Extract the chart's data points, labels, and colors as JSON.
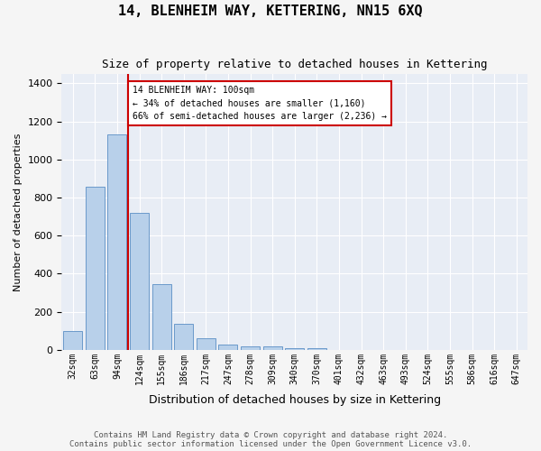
{
  "title": "14, BLENHEIM WAY, KETTERING, NN15 6XQ",
  "subtitle": "Size of property relative to detached houses in Kettering",
  "xlabel": "Distribution of detached houses by size in Kettering",
  "ylabel": "Number of detached properties",
  "categories": [
    "32sqm",
    "63sqm",
    "94sqm",
    "124sqm",
    "155sqm",
    "186sqm",
    "217sqm",
    "247sqm",
    "278sqm",
    "309sqm",
    "340sqm",
    "370sqm",
    "401sqm",
    "432sqm",
    "463sqm",
    "493sqm",
    "524sqm",
    "555sqm",
    "586sqm",
    "616sqm",
    "647sqm"
  ],
  "bar_values": [
    100,
    855,
    1130,
    720,
    345,
    135,
    60,
    30,
    20,
    18,
    10,
    10,
    0,
    0,
    0,
    0,
    0,
    0,
    0,
    0,
    0
  ],
  "bar_color": "#b8d0ea",
  "bar_edge_color": "#5b8ec5",
  "vline_x": 2.5,
  "vline_color": "#cc0000",
  "annotation_text": "14 BLENHEIM WAY: 100sqm\n← 34% of detached houses are smaller (1,160)\n66% of semi-detached houses are larger (2,236) →",
  "annotation_box_facecolor": "#ffffff",
  "annotation_box_edgecolor": "#cc0000",
  "ylim": [
    0,
    1450
  ],
  "yticks": [
    0,
    200,
    400,
    600,
    800,
    1000,
    1200,
    1400
  ],
  "plot_bg_color": "#e8edf5",
  "grid_color": "#ffffff",
  "footer_line1": "Contains HM Land Registry data © Crown copyright and database right 2024.",
  "footer_line2": "Contains public sector information licensed under the Open Government Licence v3.0."
}
